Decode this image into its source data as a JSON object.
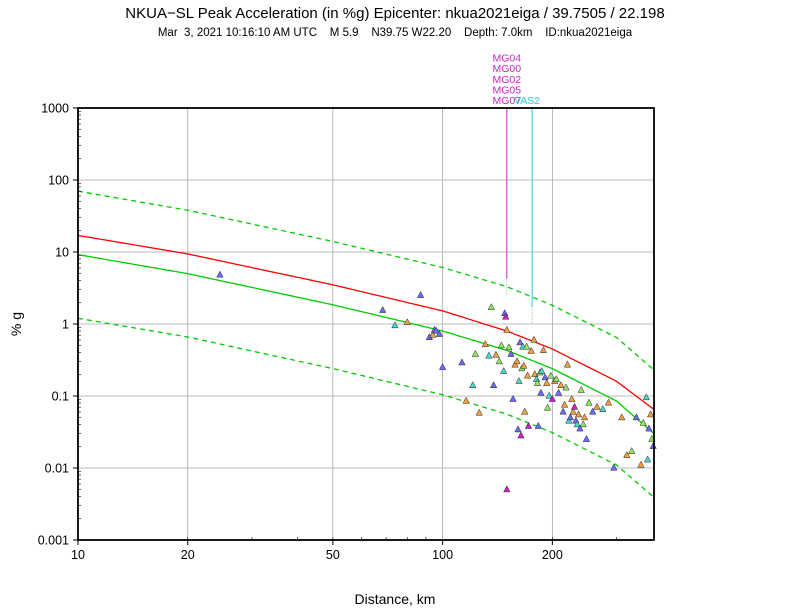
{
  "chart_data": {
    "type": "scatter",
    "title": "NKUA−SL Peak Acceleration (in %g)  Epicenter: nkua2021eiga / 39.7505 / 22.198",
    "subtitle": "Mar  3, 2021 10:16:10 AM UTC    M 5.9    N39.75 W22.20    Depth: 7.0km    ID:nkua2021eiga",
    "xlabel": "Distance, km",
    "ylabel": "% g",
    "x_scale": "log",
    "y_scale": "log",
    "xlim": [
      10,
      380
    ],
    "ylim": [
      0.001,
      1000
    ],
    "grid": true,
    "x_ticks": [
      {
        "value": 10,
        "label": "10"
      },
      {
        "value": 20,
        "label": "20"
      },
      {
        "value": 50,
        "label": "50"
      },
      {
        "value": 100,
        "label": "100"
      },
      {
        "value": 200,
        "label": "200"
      }
    ],
    "y_ticks": [
      {
        "value": 0.001,
        "label": "0.001"
      },
      {
        "value": 0.01,
        "label": "0.01"
      },
      {
        "value": 0.1,
        "label": "0.1"
      },
      {
        "value": 1,
        "label": "1"
      },
      {
        "value": 10,
        "label": "10"
      },
      {
        "value": 100,
        "label": "100"
      },
      {
        "value": 1000,
        "label": "1000"
      }
    ],
    "curves": [
      {
        "color": "#ff0000",
        "style": "solid",
        "points": [
          [
            10,
            17
          ],
          [
            20,
            9.4
          ],
          [
            50,
            3.5
          ],
          [
            100,
            1.52
          ],
          [
            150,
            0.8
          ],
          [
            200,
            0.45
          ],
          [
            300,
            0.16
          ],
          [
            380,
            0.065
          ]
        ]
      },
      {
        "color": "#00cc00",
        "style": "solid",
        "points": [
          [
            10,
            9.2
          ],
          [
            20,
            5.0
          ],
          [
            50,
            1.85
          ],
          [
            100,
            0.8
          ],
          [
            150,
            0.43
          ],
          [
            200,
            0.24
          ],
          [
            300,
            0.085
          ],
          [
            380,
            0.03
          ]
        ]
      },
      {
        "color": "#00cc00",
        "style": "dashed",
        "points": [
          [
            10,
            70
          ],
          [
            20,
            38
          ],
          [
            50,
            14
          ],
          [
            100,
            6.1
          ],
          [
            150,
            3.3
          ],
          [
            200,
            1.82
          ],
          [
            300,
            0.65
          ],
          [
            380,
            0.23
          ]
        ]
      },
      {
        "color": "#00cc00",
        "style": "dashed",
        "points": [
          [
            10,
            1.2
          ],
          [
            20,
            0.66
          ],
          [
            50,
            0.24
          ],
          [
            100,
            0.104
          ],
          [
            150,
            0.056
          ],
          [
            200,
            0.031
          ],
          [
            300,
            0.011
          ],
          [
            380,
            0.0039
          ]
        ]
      }
    ],
    "flagged": [
      {
        "x": 150,
        "labels": [
          "MG04",
          "MG00",
          "MG02",
          "MG05",
          "MG07"
        ],
        "color": "#cc22cc",
        "y_top": 1000,
        "y_bottom": 4.3
      },
      {
        "x": 176,
        "labels": [
          "VAS2"
        ],
        "color": "#22cccc",
        "y_top": 1000,
        "y_bottom": 1.75
      }
    ],
    "points": [
      {
        "x": 24.5,
        "y": 4.8,
        "color": "#6b6bff"
      },
      {
        "x": 68.5,
        "y": 1.55,
        "color": "#6b6bff"
      },
      {
        "x": 74.0,
        "y": 0.95,
        "color": "#49d9c9"
      },
      {
        "x": 80.0,
        "y": 1.05,
        "color": "#f2a03c"
      },
      {
        "x": 87.0,
        "y": 2.5,
        "color": "#6b6bff"
      },
      {
        "x": 92.0,
        "y": 0.65,
        "color": "#6b6bff"
      },
      {
        "x": 94.0,
        "y": 0.7,
        "color": "#f2a03c"
      },
      {
        "x": 95.0,
        "y": 0.82,
        "color": "#6b6bff"
      },
      {
        "x": 96.0,
        "y": 0.8,
        "color": "#6b6bff"
      },
      {
        "x": 98.0,
        "y": 0.72,
        "color": "#6b6bff"
      },
      {
        "x": 100.0,
        "y": 0.25,
        "color": "#6b6bff"
      },
      {
        "x": 113.0,
        "y": 0.29,
        "color": "#6b6bff"
      },
      {
        "x": 116.0,
        "y": 0.085,
        "color": "#f2a03c"
      },
      {
        "x": 121.0,
        "y": 0.14,
        "color": "#49d9c9"
      },
      {
        "x": 123.0,
        "y": 0.38,
        "color": "#91e861"
      },
      {
        "x": 126.0,
        "y": 0.058,
        "color": "#f2a03c"
      },
      {
        "x": 131.0,
        "y": 0.52,
        "color": "#f2a03c"
      },
      {
        "x": 134.0,
        "y": 0.36,
        "color": "#49d9c9"
      },
      {
        "x": 136.0,
        "y": 1.7,
        "color": "#91e861"
      },
      {
        "x": 138.0,
        "y": 0.14,
        "color": "#6b6bff"
      },
      {
        "x": 140.0,
        "y": 0.37,
        "color": "#f2a03c"
      },
      {
        "x": 143.0,
        "y": 0.3,
        "color": "#91e861"
      },
      {
        "x": 145.0,
        "y": 0.5,
        "color": "#91e861"
      },
      {
        "x": 147.0,
        "y": 0.22,
        "color": "#49d9c9"
      },
      {
        "x": 148.0,
        "y": 1.4,
        "color": "#6b6bff"
      },
      {
        "x": 149.0,
        "y": 1.25,
        "color": "#cc22cc"
      },
      {
        "x": 150.0,
        "y": 0.82,
        "color": "#f2a03c"
      },
      {
        "x": 150.0,
        "y": 0.005,
        "color": "#cc22cc"
      },
      {
        "x": 152.0,
        "y": 0.47,
        "color": "#91e861"
      },
      {
        "x": 154.0,
        "y": 0.38,
        "color": "#6b6bff"
      },
      {
        "x": 156.0,
        "y": 0.09,
        "color": "#6b6bff"
      },
      {
        "x": 158.0,
        "y": 0.27,
        "color": "#f2a03c"
      },
      {
        "x": 160.0,
        "y": 0.3,
        "color": "#f2a03c"
      },
      {
        "x": 161.0,
        "y": 0.034,
        "color": "#6b6bff"
      },
      {
        "x": 162.0,
        "y": 0.16,
        "color": "#49d9c9"
      },
      {
        "x": 163.0,
        "y": 0.55,
        "color": "#6b6bff"
      },
      {
        "x": 164.0,
        "y": 0.028,
        "color": "#cc22cc"
      },
      {
        "x": 165.0,
        "y": 0.24,
        "color": "#91e861"
      },
      {
        "x": 166.0,
        "y": 0.48,
        "color": "#49d9c9"
      },
      {
        "x": 167.0,
        "y": 0.26,
        "color": "#f2a03c"
      },
      {
        "x": 168.0,
        "y": 0.06,
        "color": "#f2a03c"
      },
      {
        "x": 170.0,
        "y": 0.48,
        "color": "#91e861"
      },
      {
        "x": 171.0,
        "y": 0.19,
        "color": "#f2a03c"
      },
      {
        "x": 172.0,
        "y": 0.038,
        "color": "#cc22cc"
      },
      {
        "x": 175.0,
        "y": 0.42,
        "color": "#f2a03c"
      },
      {
        "x": 178.0,
        "y": 0.6,
        "color": "#f2a03c"
      },
      {
        "x": 179.0,
        "y": 0.2,
        "color": "#f2a03c"
      },
      {
        "x": 181.0,
        "y": 0.17,
        "color": "#49d9c9"
      },
      {
        "x": 182.0,
        "y": 0.15,
        "color": "#91e861"
      },
      {
        "x": 183.0,
        "y": 0.038,
        "color": "#6b6bff"
      },
      {
        "x": 185.0,
        "y": 0.21,
        "color": "#91e861"
      },
      {
        "x": 186.0,
        "y": 0.11,
        "color": "#6b6bff"
      },
      {
        "x": 187.0,
        "y": 0.22,
        "color": "#49d9c9"
      },
      {
        "x": 189.0,
        "y": 0.43,
        "color": "#f2a03c"
      },
      {
        "x": 191.0,
        "y": 0.18,
        "color": "#6b6bff"
      },
      {
        "x": 193.0,
        "y": 0.15,
        "color": "#f2a03c"
      },
      {
        "x": 194.0,
        "y": 0.068,
        "color": "#91e861"
      },
      {
        "x": 196.0,
        "y": 0.1,
        "color": "#49d9c9"
      },
      {
        "x": 198.0,
        "y": 0.19,
        "color": "#91e861"
      },
      {
        "x": 200.0,
        "y": 0.09,
        "color": "#cc22cc"
      },
      {
        "x": 203.0,
        "y": 0.16,
        "color": "#f2a03c"
      },
      {
        "x": 205.0,
        "y": 0.17,
        "color": "#91e861"
      },
      {
        "x": 208.0,
        "y": 0.11,
        "color": "#6b6bff"
      },
      {
        "x": 211.0,
        "y": 0.14,
        "color": "#f2a03c"
      },
      {
        "x": 214.0,
        "y": 0.06,
        "color": "#6b6bff"
      },
      {
        "x": 216.0,
        "y": 0.075,
        "color": "#f2a03c"
      },
      {
        "x": 218.0,
        "y": 0.13,
        "color": "#91e861"
      },
      {
        "x": 220.0,
        "y": 0.27,
        "color": "#f2a03c"
      },
      {
        "x": 222.0,
        "y": 0.045,
        "color": "#49d9c9"
      },
      {
        "x": 224.0,
        "y": 0.05,
        "color": "#6b6bff"
      },
      {
        "x": 226.0,
        "y": 0.09,
        "color": "#f2a03c"
      },
      {
        "x": 228.0,
        "y": 0.06,
        "color": "#f2a03c"
      },
      {
        "x": 230.0,
        "y": 0.07,
        "color": "#cc22cc"
      },
      {
        "x": 232.0,
        "y": 0.045,
        "color": "#6b6bff"
      },
      {
        "x": 234.0,
        "y": 0.04,
        "color": "#49d9c9"
      },
      {
        "x": 236.0,
        "y": 0.055,
        "color": "#f2a03c"
      },
      {
        "x": 238.0,
        "y": 0.035,
        "color": "#6b6bff"
      },
      {
        "x": 240.0,
        "y": 0.12,
        "color": "#91e861"
      },
      {
        "x": 243.0,
        "y": 0.04,
        "color": "#91e861"
      },
      {
        "x": 245.0,
        "y": 0.05,
        "color": "#f2a03c"
      },
      {
        "x": 248.0,
        "y": 0.025,
        "color": "#6b6bff"
      },
      {
        "x": 252.0,
        "y": 0.08,
        "color": "#91e861"
      },
      {
        "x": 258.0,
        "y": 0.06,
        "color": "#6b6bff"
      },
      {
        "x": 265.0,
        "y": 0.07,
        "color": "#f2a03c"
      },
      {
        "x": 275.0,
        "y": 0.065,
        "color": "#49d9c9"
      },
      {
        "x": 285.0,
        "y": 0.08,
        "color": "#f2a03c"
      },
      {
        "x": 295.0,
        "y": 0.01,
        "color": "#6b6bff"
      },
      {
        "x": 310.0,
        "y": 0.05,
        "color": "#f2a03c"
      },
      {
        "x": 320.0,
        "y": 0.015,
        "color": "#f2a03c"
      },
      {
        "x": 330.0,
        "y": 0.017,
        "color": "#91e861"
      },
      {
        "x": 340.0,
        "y": 0.05,
        "color": "#6b6bff"
      },
      {
        "x": 350.0,
        "y": 0.011,
        "color": "#f2a03c"
      },
      {
        "x": 355.0,
        "y": 0.042,
        "color": "#91e861"
      },
      {
        "x": 362.0,
        "y": 0.095,
        "color": "#49d9c9"
      },
      {
        "x": 365.0,
        "y": 0.013,
        "color": "#49d9c9"
      },
      {
        "x": 368.0,
        "y": 0.035,
        "color": "#6b6bff"
      },
      {
        "x": 372.0,
        "y": 0.055,
        "color": "#f2a03c"
      },
      {
        "x": 375.0,
        "y": 0.025,
        "color": "#91e861"
      },
      {
        "x": 378.0,
        "y": 0.02,
        "color": "#6b6bff"
      }
    ]
  }
}
